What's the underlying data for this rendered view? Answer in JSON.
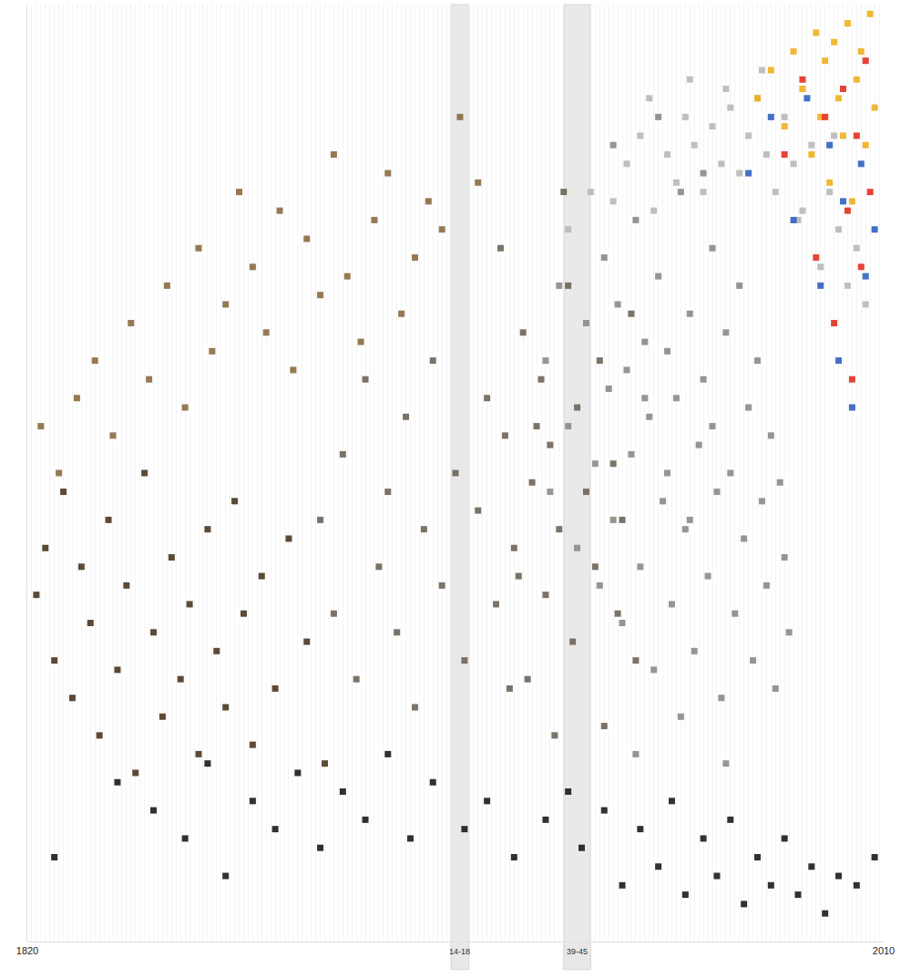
{
  "chart_data": {
    "type": "scatter",
    "marker": "square",
    "grid": true,
    "tick_labels": "x",
    "xlim": [
      1820,
      2010
    ],
    "xticks": [
      1820,
      2010
    ],
    "ylim": [
      0,
      100
    ],
    "bands": [
      {
        "label": "14-18",
        "start": 1914,
        "end": 1918
      },
      {
        "label": "39-45",
        "start": 1939,
        "end": 1945
      }
    ],
    "series": [
      {
        "color": "#4a3520",
        "x": [
          1822,
          1824,
          1826,
          1828,
          1830,
          1832,
          1834,
          1836,
          1838,
          1840,
          1842,
          1844,
          1846,
          1848,
          1850,
          1852,
          1854,
          1856,
          1858,
          1860,
          1862,
          1864,
          1866,
          1868,
          1870,
          1872,
          1875,
          1878,
          1882,
          1886
        ],
        "values": [
          37,
          42,
          30,
          48,
          26,
          40,
          34,
          22,
          45,
          29,
          38,
          18,
          50,
          33,
          24,
          41,
          28,
          36,
          20,
          44,
          31,
          25,
          47,
          35,
          21,
          39,
          27,
          43,
          32,
          19
        ]
      },
      {
        "color": "#8b6a40",
        "x": [
          1823,
          1827,
          1831,
          1835,
          1839,
          1843,
          1847,
          1851,
          1855,
          1858,
          1861,
          1864,
          1867,
          1870,
          1873,
          1876,
          1879,
          1882,
          1885,
          1888,
          1891,
          1894,
          1897,
          1900,
          1903,
          1906,
          1909,
          1912,
          1916,
          1920
        ],
        "values": [
          55,
          50,
          58,
          62,
          54,
          66,
          60,
          70,
          57,
          74,
          63,
          68,
          80,
          72,
          65,
          78,
          61,
          75,
          69,
          84,
          71,
          64,
          77,
          82,
          67,
          73,
          79,
          76,
          88,
          81
        ]
      },
      {
        "color": "#1e1a16",
        "x": [
          1826,
          1840,
          1848,
          1855,
          1860,
          1864,
          1870,
          1875,
          1880,
          1885,
          1890,
          1895,
          1900,
          1905,
          1910,
          1917,
          1922,
          1928,
          1935,
          1940,
          1943,
          1948,
          1952,
          1956,
          1960,
          1963,
          1966,
          1970,
          1973,
          1976,
          1979,
          1982,
          1985,
          1988,
          1991,
          1994,
          1997,
          2000,
          2004,
          2008
        ],
        "values": [
          9,
          17,
          14,
          11,
          19,
          7,
          15,
          12,
          18,
          10,
          16,
          13,
          20,
          11,
          17,
          12,
          15,
          9,
          13,
          16,
          10,
          14,
          6,
          12,
          8,
          15,
          5,
          11,
          7,
          13,
          4,
          9,
          6,
          11,
          5,
          8,
          3,
          7,
          6,
          9
        ]
      },
      {
        "color": "#6e6356",
        "x": [
          1885,
          1888,
          1890,
          1893,
          1895,
          1898,
          1900,
          1902,
          1904,
          1906,
          1908,
          1910,
          1912,
          1915,
          1917,
          1920,
          1922,
          1924,
          1926,
          1928,
          1930,
          1931,
          1932,
          1934,
          1935,
          1936,
          1938,
          1940,
          1941,
          1942,
          1944,
          1946,
          1947,
          1948,
          1950,
          1951,
          1952,
          1954,
          1955,
          1925,
          1927,
          1929,
          1933,
          1937,
          1939
        ],
        "values": [
          45,
          35,
          52,
          28,
          60,
          40,
          48,
          33,
          56,
          25,
          44,
          62,
          38,
          50,
          30,
          46,
          58,
          36,
          54,
          42,
          65,
          28,
          49,
          60,
          37,
          53,
          44,
          70,
          32,
          57,
          48,
          40,
          62,
          23,
          51,
          35,
          45,
          67,
          30,
          74,
          27,
          39,
          55,
          22,
          80
        ]
      },
      {
        "color": "#8c8a86",
        "x": [
          1935,
          1936,
          1938,
          1940,
          1942,
          1944,
          1946,
          1947,
          1948,
          1949,
          1950,
          1951,
          1952,
          1953,
          1954,
          1955,
          1956,
          1957,
          1958,
          1959,
          1960,
          1961,
          1962,
          1963,
          1964,
          1965,
          1966,
          1967,
          1968,
          1969,
          1970,
          1971,
          1972,
          1973,
          1974,
          1975,
          1976,
          1977,
          1978,
          1979,
          1980,
          1981,
          1982,
          1983,
          1984,
          1985,
          1986,
          1987,
          1988,
          1989,
          1950,
          1955,
          1960,
          1965,
          1970,
          1975,
          1957,
          1962,
          1967,
          1972
        ],
        "values": [
          62,
          48,
          70,
          55,
          42,
          66,
          51,
          38,
          73,
          59,
          45,
          68,
          34,
          61,
          52,
          77,
          40,
          64,
          56,
          29,
          71,
          47,
          63,
          36,
          58,
          80,
          44,
          67,
          31,
          53,
          60,
          39,
          74,
          48,
          26,
          65,
          50,
          35,
          70,
          43,
          57,
          30,
          62,
          47,
          38,
          54,
          27,
          49,
          41,
          33,
          85,
          20,
          88,
          24,
          82,
          19,
          58,
          50,
          45,
          55
        ]
      },
      {
        "color": "#b8b8b8",
        "x": [
          1940,
          1945,
          1950,
          1953,
          1956,
          1959,
          1962,
          1964,
          1966,
          1968,
          1970,
          1972,
          1974,
          1976,
          1978,
          1980,
          1982,
          1984,
          1986,
          1988,
          1990,
          1992,
          1994,
          1996,
          1998,
          2000,
          2002,
          2004,
          2006,
          1958,
          1967,
          1975,
          1983,
          1991,
          1999
        ],
        "values": [
          76,
          80,
          79,
          83,
          86,
          78,
          84,
          81,
          88,
          85,
          80,
          87,
          83,
          89,
          82,
          86,
          90,
          84,
          80,
          88,
          83,
          78,
          85,
          72,
          80,
          76,
          70,
          74,
          68,
          90,
          92,
          91,
          93,
          77,
          86
        ]
      },
      {
        "color": "#f0b020",
        "x": [
          1982,
          1985,
          1988,
          1990,
          1992,
          1994,
          1995,
          1996,
          1997,
          1998,
          1999,
          2000,
          2001,
          2002,
          2003,
          2004,
          2005,
          2006,
          2007,
          2008
        ],
        "values": [
          90,
          93,
          87,
          95,
          91,
          84,
          97,
          88,
          94,
          81,
          96,
          90,
          86,
          98,
          79,
          92,
          95,
          85,
          99,
          89
        ]
      },
      {
        "color": "#e03020",
        "x": [
          1988,
          1992,
          1995,
          1997,
          1999,
          2001,
          2002,
          2003,
          2004,
          2005,
          2006,
          2007
        ],
        "values": [
          84,
          92,
          73,
          88,
          66,
          91,
          78,
          60,
          86,
          72,
          94,
          80
        ]
      },
      {
        "color": "#3060c0",
        "x": [
          1980,
          1985,
          1990,
          1993,
          1996,
          1998,
          2000,
          2001,
          2003,
          2005,
          2006,
          2008
        ],
        "values": [
          82,
          88,
          77,
          90,
          70,
          85,
          62,
          79,
          57,
          83,
          71,
          76
        ]
      }
    ]
  }
}
